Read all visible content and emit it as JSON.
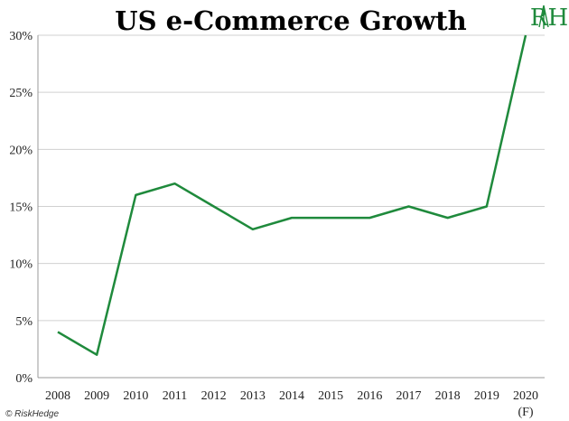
{
  "chart_data": {
    "type": "line",
    "title": "US e-Commerce Growth",
    "categories": [
      "2008",
      "2009",
      "2010",
      "2011",
      "2012",
      "2013",
      "2014",
      "2015",
      "2016",
      "2017",
      "2018",
      "2019",
      "2020"
    ],
    "category_sublabels": {
      "2020": "(F)"
    },
    "series": [
      {
        "values": [
          4,
          2,
          16,
          17,
          15,
          13,
          14,
          14,
          14,
          15,
          14,
          15,
          30
        ],
        "color": "#1f8a3c"
      }
    ],
    "y_ticks": [
      "0%",
      "5%",
      "10%",
      "15%",
      "20%",
      "25%",
      "30%"
    ],
    "ylim": [
      0,
      30
    ],
    "y_unit": "%",
    "grid": true,
    "legend": "none"
  },
  "logo": {
    "text": "RH",
    "icon": "riskhedge-logo"
  },
  "footer": {
    "copyright": "© RiskHedge"
  },
  "colors": {
    "line": "#1f8a3c",
    "grid": "#d0d0d0",
    "axis": "#999999"
  }
}
